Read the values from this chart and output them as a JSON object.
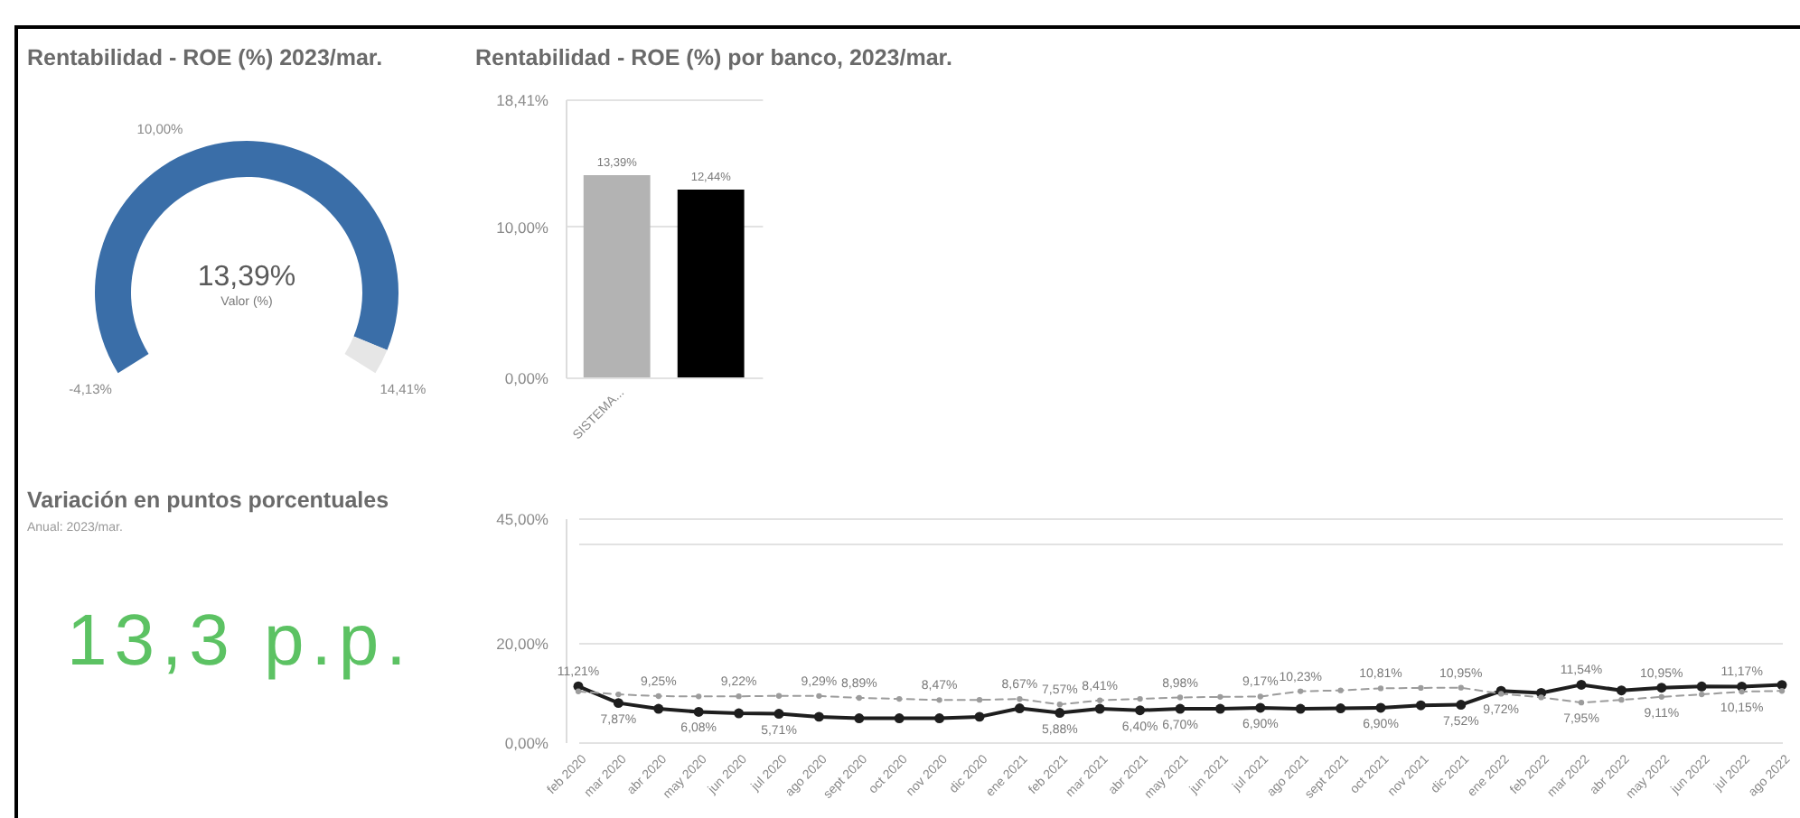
{
  "chart_data": [
    {
      "type": "donut",
      "title": "Rentabilidad - ROE (%) 2023/mar.",
      "categories": [
        null,
        null
      ],
      "values": [
        96,
        4
      ],
      "colors": [
        "#3a6ea8",
        "#e6e6e6"
      ],
      "annotations": [
        "13,39%",
        "Valor (%)",
        "-4,13%",
        "10,00%",
        "14,41%"
      ]
    },
    {
      "type": "bar",
      "title": "Rentabilidad - ROE (%) por banco, 2023/mar.",
      "categories": [
        "SISTEMA...",
        null
      ],
      "values": [
        13.39,
        12.44
      ],
      "colors": [
        "#b3b3b3",
        "#000000"
      ],
      "value_labels": [
        "13,39%",
        "12,44%"
      ],
      "ylim": [
        0,
        18.41
      ],
      "yticks": [
        {
          "value": 0,
          "label": "0,00%"
        },
        {
          "value": 10,
          "label": "10,00%"
        },
        {
          "value": 18.41,
          "label": "18,41%"
        }
      ],
      "grid": "y"
    },
    {
      "type": "other",
      "title": "Variación en puntos porcentuales",
      "subtitle": "Anual: 2023/mar.",
      "annotations": [
        "13,3 p.p."
      ],
      "color": "#5cc263"
    },
    {
      "type": "line",
      "categories": [
        "feb 2020",
        "mar 2020",
        "abr 2020",
        "may 2020",
        "jun 2020",
        "jul 2020",
        "ago 2020",
        "sept 2020",
        "oct 2020",
        "nov 2020",
        "dic 2020",
        "ene 2021",
        "feb 2021",
        "mar 2021",
        "abr 2021",
        "may 2021",
        "jun 2021",
        "jul 2021",
        "ago 2021",
        "sept 2021",
        "oct 2021",
        "nov 2021",
        "dic 2021",
        "ene 2022",
        "feb 2022",
        "mar 2022",
        "abr 2022",
        "may 2022",
        "jun 2022",
        "jul 2022",
        "ago 2022"
      ],
      "series": [
        {
          "color": "#1e1e1e",
          "line_style": "solid",
          "marker": "circle",
          "values": [
            11.21,
            7.87,
            6.7,
            6.08,
            5.8,
            5.71,
            5.1,
            4.8,
            4.8,
            4.8,
            5.1,
            6.8,
            5.88,
            6.7,
            6.4,
            6.7,
            6.7,
            6.9,
            6.7,
            6.8,
            6.9,
            7.4,
            7.52,
            10.3,
            9.9,
            11.54,
            10.4,
            10.95,
            11.2,
            11.17,
            11.5
          ],
          "value_labels": [
            "11,21%",
            "7,87%",
            null,
            "6,08%",
            null,
            "5,71%",
            null,
            null,
            null,
            null,
            null,
            null,
            "5,88%",
            null,
            "6,40%",
            "6,70%",
            null,
            "6,90%",
            null,
            null,
            "6,90%",
            null,
            "7,52%",
            null,
            null,
            "11,54%",
            null,
            "10,95%",
            null,
            "11,17%",
            null
          ]
        },
        {
          "color": "#9c9c9c",
          "line_style": "dashed",
          "marker": "circle",
          "values": [
            10.2,
            9.6,
            9.25,
            9.2,
            9.22,
            9.3,
            9.29,
            8.89,
            8.7,
            8.47,
            8.5,
            8.67,
            7.57,
            8.41,
            8.7,
            8.98,
            9.1,
            9.17,
            10.23,
            10.4,
            10.81,
            10.9,
            10.95,
            9.72,
            9.0,
            7.95,
            8.5,
            9.11,
            9.6,
            10.15,
            10.3
          ],
          "value_labels": [
            null,
            null,
            "9,25%",
            null,
            "9,22%",
            null,
            "9,29%",
            "8,89%",
            null,
            "8,47%",
            null,
            "8,67%",
            "7,57%",
            "8,41%",
            null,
            "8,98%",
            null,
            "9,17%",
            "10,23%",
            null,
            "10,81%",
            null,
            "10,95%",
            "9,72%",
            null,
            "7,95%",
            null,
            "9,11%",
            null,
            "10,15%",
            null
          ]
        }
      ],
      "ylim": [
        0,
        45
      ],
      "yticks": [
        {
          "value": 0,
          "label": "0,00%"
        },
        {
          "value": 20,
          "label": "20,00%"
        },
        {
          "value": 40,
          "label": null
        },
        {
          "value": 45,
          "label": "45,00%"
        }
      ],
      "grid": "y"
    }
  ]
}
